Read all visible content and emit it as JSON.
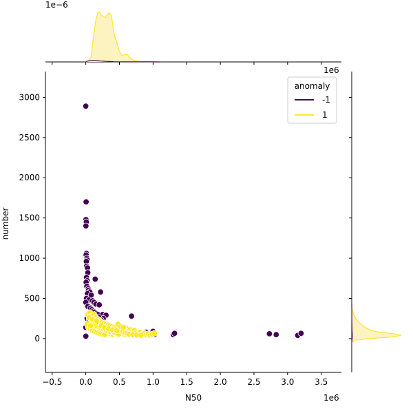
{
  "chart_data": {
    "type": "scatter",
    "subtype": "jointplot",
    "xlabel": "N50",
    "ylabel": "number",
    "x_offset_text": "1e6",
    "top_density_offset_text": "1e−6",
    "right_density_offset_text": "1e6",
    "xlim": [
      -600000,
      3800000
    ],
    "ylim": [
      -420,
      3320
    ],
    "x_ticks": [
      -500000,
      0,
      500000,
      1000000,
      1500000,
      2000000,
      2500000,
      3000000,
      3500000
    ],
    "x_tick_labels": [
      "−0.5",
      "0.0",
      "0.5",
      "1.0",
      "1.5",
      "2.0",
      "2.5",
      "3.0",
      "3.5"
    ],
    "y_ticks": [
      0,
      500,
      1000,
      1500,
      2000,
      2500,
      3000
    ],
    "y_tick_labels": [
      "0",
      "500",
      "1000",
      "1500",
      "2000",
      "2500",
      "3000"
    ],
    "legend": {
      "title": "anomaly",
      "placement": "top-right",
      "entries": [
        {
          "label": "-1",
          "color": "#440154"
        },
        {
          "label": "1",
          "color": "#fde725"
        }
      ]
    },
    "colors": {
      "anomaly_-1": "#440154",
      "anomaly_1": "#fde725",
      "kde_fill_1": "#fdf3c0"
    },
    "series": [
      {
        "name": "-1",
        "color": "#440154",
        "points": [
          [
            0,
            2890
          ],
          [
            5000,
            1700
          ],
          [
            3000,
            1480
          ],
          [
            8000,
            1450
          ],
          [
            2000,
            1400
          ],
          [
            10000,
            1060
          ],
          [
            5000,
            1040
          ],
          [
            15000,
            1000
          ],
          [
            20000,
            980
          ],
          [
            8000,
            960
          ],
          [
            12000,
            900
          ],
          [
            25000,
            880
          ],
          [
            30000,
            820
          ],
          [
            10000,
            760
          ],
          [
            20000,
            720
          ],
          [
            5000,
            700
          ],
          [
            15000,
            650
          ],
          [
            35000,
            620
          ],
          [
            40000,
            600
          ],
          [
            60000,
            580
          ],
          [
            25000,
            560
          ],
          [
            80000,
            540
          ],
          [
            10000,
            500
          ],
          [
            45000,
            480
          ],
          [
            0,
            450
          ],
          [
            100000,
            470
          ],
          [
            120000,
            450
          ],
          [
            150000,
            430
          ],
          [
            200000,
            420
          ],
          [
            140000,
            740
          ],
          [
            220000,
            580
          ],
          [
            30000,
            400
          ],
          [
            70000,
            380
          ],
          [
            90000,
            360
          ],
          [
            110000,
            340
          ],
          [
            130000,
            330
          ],
          [
            160000,
            310
          ],
          [
            180000,
            300
          ],
          [
            250000,
            300
          ],
          [
            300000,
            290
          ],
          [
            260000,
            250
          ],
          [
            190000,
            270
          ],
          [
            230000,
            230
          ],
          [
            50000,
            300
          ],
          [
            20000,
            250
          ],
          [
            0,
            140
          ],
          [
            1000,
            30
          ],
          [
            320000,
            160
          ],
          [
            400000,
            140
          ],
          [
            600000,
            110
          ],
          [
            700000,
            90
          ],
          [
            800000,
            70
          ],
          [
            900000,
            80
          ],
          [
            960000,
            60
          ],
          [
            1000000,
            90
          ],
          [
            1020000,
            50
          ],
          [
            1300000,
            50
          ],
          [
            1320000,
            65
          ],
          [
            2730000,
            60
          ],
          [
            2830000,
            50
          ],
          [
            3150000,
            40
          ],
          [
            3200000,
            65
          ],
          [
            680000,
            280
          ],
          [
            50000,
            240
          ],
          [
            150000,
            200
          ]
        ]
      },
      {
        "name": "1",
        "color": "#fde725",
        "points": [
          [
            30000,
            300
          ],
          [
            60000,
            320
          ],
          [
            90000,
            280
          ],
          [
            120000,
            300
          ],
          [
            150000,
            260
          ],
          [
            180000,
            240
          ],
          [
            210000,
            220
          ],
          [
            240000,
            200
          ],
          [
            270000,
            190
          ],
          [
            300000,
            180
          ],
          [
            330000,
            170
          ],
          [
            360000,
            160
          ],
          [
            390000,
            150
          ],
          [
            420000,
            140
          ],
          [
            450000,
            130
          ],
          [
            480000,
            180
          ],
          [
            510000,
            120
          ],
          [
            540000,
            110
          ],
          [
            570000,
            100
          ],
          [
            600000,
            130
          ],
          [
            630000,
            90
          ],
          [
            660000,
            110
          ],
          [
            690000,
            80
          ],
          [
            720000,
            100
          ],
          [
            750000,
            70
          ],
          [
            780000,
            60
          ],
          [
            810000,
            75
          ],
          [
            840000,
            55
          ],
          [
            870000,
            65
          ],
          [
            900000,
            50
          ],
          [
            930000,
            60
          ],
          [
            960000,
            45
          ],
          [
            990000,
            55
          ],
          [
            1020000,
            65
          ],
          [
            80000,
            200
          ],
          [
            110000,
            180
          ],
          [
            140000,
            150
          ],
          [
            170000,
            130
          ],
          [
            200000,
            110
          ],
          [
            230000,
            100
          ],
          [
            260000,
            90
          ],
          [
            290000,
            80
          ],
          [
            320000,
            70
          ],
          [
            350000,
            60
          ],
          [
            380000,
            55
          ],
          [
            410000,
            50
          ],
          [
            440000,
            60
          ],
          [
            470000,
            70
          ],
          [
            500000,
            80
          ],
          [
            530000,
            65
          ],
          [
            560000,
            55
          ],
          [
            590000,
            50
          ],
          [
            620000,
            60
          ],
          [
            650000,
            70
          ],
          [
            40000,
            140
          ],
          [
            70000,
            120
          ],
          [
            100000,
            100
          ],
          [
            130000,
            90
          ],
          [
            160000,
            80
          ],
          [
            190000,
            70
          ],
          [
            220000,
            60
          ],
          [
            250000,
            55
          ],
          [
            280000,
            50
          ],
          [
            310000,
            100
          ],
          [
            340000,
            90
          ],
          [
            370000,
            85
          ],
          [
            400000,
            95
          ],
          [
            430000,
            75
          ],
          [
            460000,
            65
          ],
          [
            490000,
            55
          ],
          [
            520000,
            95
          ],
          [
            550000,
            85
          ],
          [
            580000,
            75
          ],
          [
            610000,
            65
          ],
          [
            640000,
            55
          ],
          [
            50000,
            260
          ],
          [
            100000,
            240
          ],
          [
            160000,
            220
          ],
          [
            230000,
            160
          ],
          [
            280000,
            140
          ],
          [
            340000,
            120
          ],
          [
            400000,
            110
          ],
          [
            460000,
            100
          ],
          [
            520000,
            150
          ],
          [
            560000,
            140
          ],
          [
            20000,
            180
          ],
          [
            70000,
            160
          ],
          [
            700000,
            50
          ],
          [
            760000,
            45
          ],
          [
            820000,
            40
          ]
        ]
      }
    ],
    "marginal_top": {
      "type": "kde",
      "x": [
        0,
        40000,
        80000,
        110000,
        150000,
        180000,
        200000,
        230000,
        260000,
        290000,
        320000,
        350000,
        380000,
        420000,
        460000,
        500000,
        540000,
        580000,
        620000,
        660000,
        700000,
        760000,
        820000,
        900000,
        1000000,
        1100000
      ],
      "series": [
        {
          "name": "1",
          "density": [
            0,
            0.02,
            0.1,
            0.45,
            0.82,
            0.95,
            0.97,
            0.92,
            0.88,
            0.86,
            0.93,
            0.95,
            0.9,
            0.55,
            0.38,
            0.2,
            0.12,
            0.15,
            0.14,
            0.08,
            0.04,
            0.02,
            0.01,
            0.005,
            0,
            0
          ]
        },
        {
          "name": "-1",
          "density": [
            0.01,
            0.02,
            0.025,
            0.03,
            0.03,
            0.025,
            0.02,
            0.018,
            0.015,
            0.012,
            0.01,
            0.008,
            0.006,
            0.004,
            0.003,
            0.002,
            0.002,
            0.002,
            0.002,
            0.002,
            0.001,
            0.001,
            0.001,
            0.001,
            0.001,
            0
          ]
        }
      ]
    },
    "marginal_right": {
      "type": "kde",
      "y": [
        -50,
        -20,
        0,
        20,
        40,
        60,
        80,
        100,
        130,
        160,
        200,
        250,
        300,
        360,
        430
      ],
      "series": [
        {
          "name": "1",
          "density": [
            0,
            0.05,
            0.35,
            0.8,
            1.0,
            0.85,
            0.55,
            0.4,
            0.3,
            0.22,
            0.15,
            0.08,
            0.04,
            0.01,
            0
          ]
        },
        {
          "name": "-1",
          "density": [
            0,
            0.005,
            0.01,
            0.012,
            0.012,
            0.01,
            0.008,
            0.006,
            0.005,
            0.004,
            0.003,
            0.002,
            0.002,
            0.001,
            0
          ]
        }
      ]
    }
  }
}
